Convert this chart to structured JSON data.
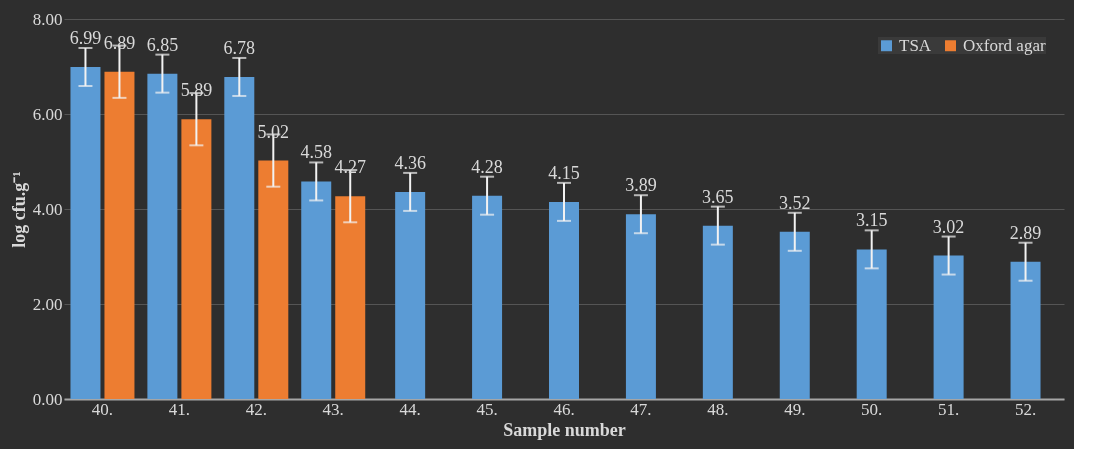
{
  "chart_data": {
    "type": "bar",
    "xlabel": "Sample number",
    "ylabel": "log cfu.g⁻¹",
    "categories": [
      "40.",
      "41.",
      "42.",
      "43.",
      "44.",
      "45.",
      "46.",
      "47.",
      "48.",
      "49.",
      "50.",
      "51.",
      "52."
    ],
    "series": [
      {
        "name": "TSA",
        "color": "#5b9bd5",
        "values": [
          6.99,
          6.85,
          6.78,
          4.58,
          4.36,
          4.28,
          4.15,
          3.89,
          3.65,
          3.52,
          3.15,
          3.02,
          2.89
        ],
        "errors": [
          0.4,
          0.4,
          0.4,
          0.4,
          0.4,
          0.4,
          0.4,
          0.4,
          0.4,
          0.4,
          0.4,
          0.4,
          0.4
        ]
      },
      {
        "name": "Oxford agar",
        "color": "#ed7d31",
        "values": [
          6.89,
          5.89,
          5.02,
          4.27,
          null,
          null,
          null,
          null,
          null,
          null,
          null,
          null,
          null
        ],
        "errors": [
          0.55,
          0.55,
          0.55,
          0.55,
          null,
          null,
          null,
          null,
          null,
          null,
          null,
          null,
          null
        ]
      }
    ],
    "ylim": [
      0,
      8
    ],
    "yticks": [
      {
        "value": 0,
        "label": "0.00"
      },
      {
        "value": 2,
        "label": "2.00"
      },
      {
        "value": 4,
        "label": "4.00"
      },
      {
        "value": 6,
        "label": "6.00"
      },
      {
        "value": 8,
        "label": "8.00"
      }
    ],
    "grid": "y",
    "legend": "top right",
    "data_labels": true
  }
}
